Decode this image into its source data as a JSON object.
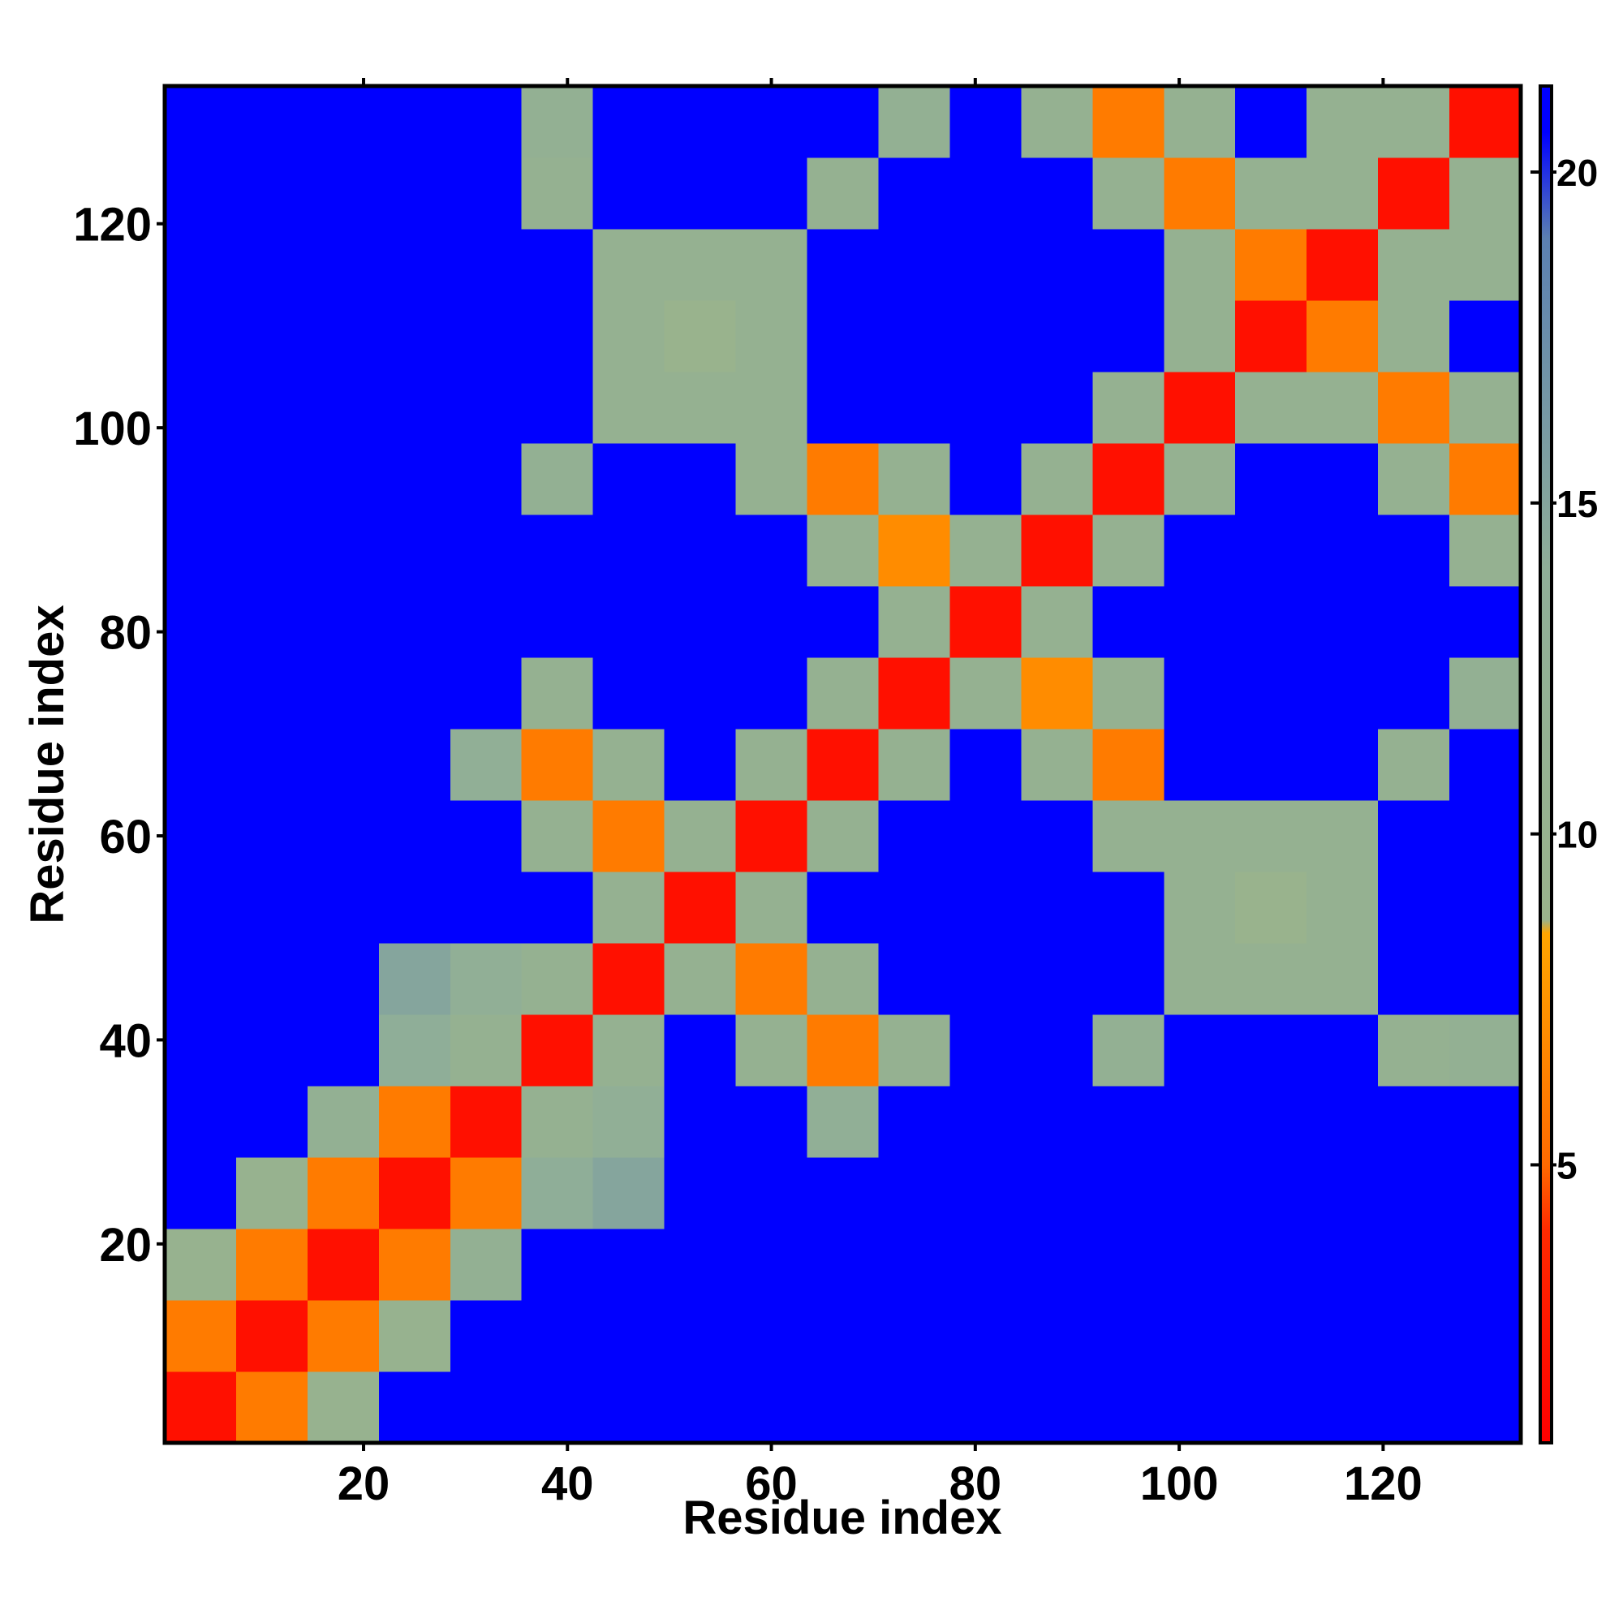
{
  "chart_data": {
    "type": "heatmap",
    "xlabel": "Residue index",
    "ylabel": "Residue index",
    "xlim": [
      0.5,
      133.5
    ],
    "ylim": [
      0.5,
      133.5
    ],
    "xticks": [
      20,
      40,
      60,
      80,
      100,
      120
    ],
    "yticks": [
      20,
      40,
      60,
      80,
      100,
      120
    ],
    "x_bins": [
      0.5,
      7.5,
      14.5,
      21.5,
      28.5,
      35.5,
      42.5,
      49.5,
      56.5,
      63.5,
      70.5,
      77.5,
      84.5,
      91.5,
      98.5,
      105.5,
      112.5,
      119.5,
      126.5,
      133.5
    ],
    "y_bins": [
      0.5,
      7.5,
      14.5,
      21.5,
      28.5,
      35.5,
      42.5,
      49.5,
      56.5,
      63.5,
      70.5,
      77.5,
      84.5,
      91.5,
      98.5,
      105.5,
      112.5,
      119.5,
      126.5,
      133.5
    ],
    "z": [
      [
        2,
        6,
        10,
        21,
        21,
        21,
        21,
        21,
        21,
        21,
        21,
        21,
        21,
        21,
        21,
        21,
        21,
        21,
        21
      ],
      [
        6,
        2,
        6,
        10,
        21,
        21,
        21,
        21,
        21,
        21,
        21,
        21,
        21,
        21,
        21,
        21,
        21,
        21,
        21
      ],
      [
        10,
        6,
        2,
        6,
        12,
        21,
        21,
        21,
        21,
        21,
        21,
        21,
        21,
        21,
        21,
        21,
        21,
        21,
        21
      ],
      [
        21,
        10,
        6,
        2,
        6,
        14,
        15,
        21,
        21,
        21,
        21,
        21,
        21,
        21,
        21,
        21,
        21,
        21,
        21
      ],
      [
        21,
        21,
        12,
        6,
        2,
        11,
        13,
        21,
        21,
        13,
        21,
        21,
        21,
        21,
        21,
        21,
        21,
        21,
        21
      ],
      [
        21,
        21,
        21,
        14,
        11,
        2,
        11,
        21,
        11,
        6,
        11,
        21,
        21,
        12,
        21,
        21,
        21,
        11,
        12
      ],
      [
        21,
        21,
        21,
        15,
        13,
        11,
        2,
        11,
        6,
        11,
        21,
        21,
        21,
        21,
        11,
        11,
        11,
        21,
        21
      ],
      [
        21,
        21,
        21,
        21,
        21,
        21,
        11,
        2,
        11,
        21,
        21,
        21,
        21,
        21,
        11,
        9,
        11,
        21,
        21
      ],
      [
        21,
        21,
        21,
        21,
        21,
        11,
        6,
        11,
        2,
        11,
        21,
        21,
        21,
        11,
        11,
        11,
        11,
        21,
        21
      ],
      [
        21,
        21,
        21,
        21,
        13,
        6,
        11,
        21,
        11,
        2,
        11,
        21,
        11,
        6,
        21,
        21,
        21,
        11,
        21
      ],
      [
        21,
        21,
        21,
        21,
        21,
        11,
        21,
        21,
        21,
        11,
        2,
        11,
        7,
        11,
        21,
        21,
        21,
        21,
        12
      ],
      [
        21,
        21,
        21,
        21,
        21,
        21,
        21,
        21,
        21,
        21,
        11,
        2,
        11,
        21,
        21,
        21,
        21,
        21,
        21
      ],
      [
        21,
        21,
        21,
        21,
        21,
        21,
        21,
        21,
        21,
        11,
        7,
        11,
        2,
        11,
        21,
        21,
        21,
        21,
        11
      ],
      [
        21,
        21,
        21,
        21,
        21,
        12,
        21,
        21,
        11,
        6,
        11,
        21,
        11,
        2,
        11,
        21,
        21,
        11,
        6
      ],
      [
        21,
        21,
        21,
        21,
        21,
        21,
        11,
        11,
        11,
        21,
        21,
        21,
        21,
        11,
        2,
        11,
        11,
        6,
        11
      ],
      [
        21,
        21,
        21,
        21,
        21,
        21,
        11,
        9,
        11,
        21,
        21,
        21,
        21,
        21,
        11,
        2,
        6,
        11,
        21
      ],
      [
        21,
        21,
        21,
        21,
        21,
        21,
        11,
        11,
        11,
        21,
        21,
        21,
        21,
        21,
        11,
        6,
        2,
        11,
        11
      ],
      [
        21,
        21,
        21,
        21,
        21,
        11,
        21,
        21,
        21,
        11,
        21,
        21,
        21,
        11,
        6,
        11,
        11,
        2,
        11
      ],
      [
        21,
        21,
        21,
        21,
        21,
        12,
        21,
        21,
        21,
        21,
        12,
        21,
        11,
        6,
        11,
        21,
        11,
        11,
        2
      ]
    ],
    "zlim": [
      0.8,
      21.3
    ],
    "colorbar_ticks": [
      5,
      10,
      15,
      20
    ],
    "colorscale": [
      [
        0.8,
        "#ff0000"
      ],
      [
        4,
        "#ff2a00"
      ],
      [
        5,
        "#ff6a00"
      ],
      [
        8.5,
        "#ffa500"
      ],
      [
        8.7,
        "#9ab38c"
      ],
      [
        14,
        "#8fae98"
      ],
      [
        19,
        "#5b80b2"
      ],
      [
        20.6,
        "#0000ff"
      ],
      [
        21.3,
        "#0000ff"
      ]
    ]
  }
}
